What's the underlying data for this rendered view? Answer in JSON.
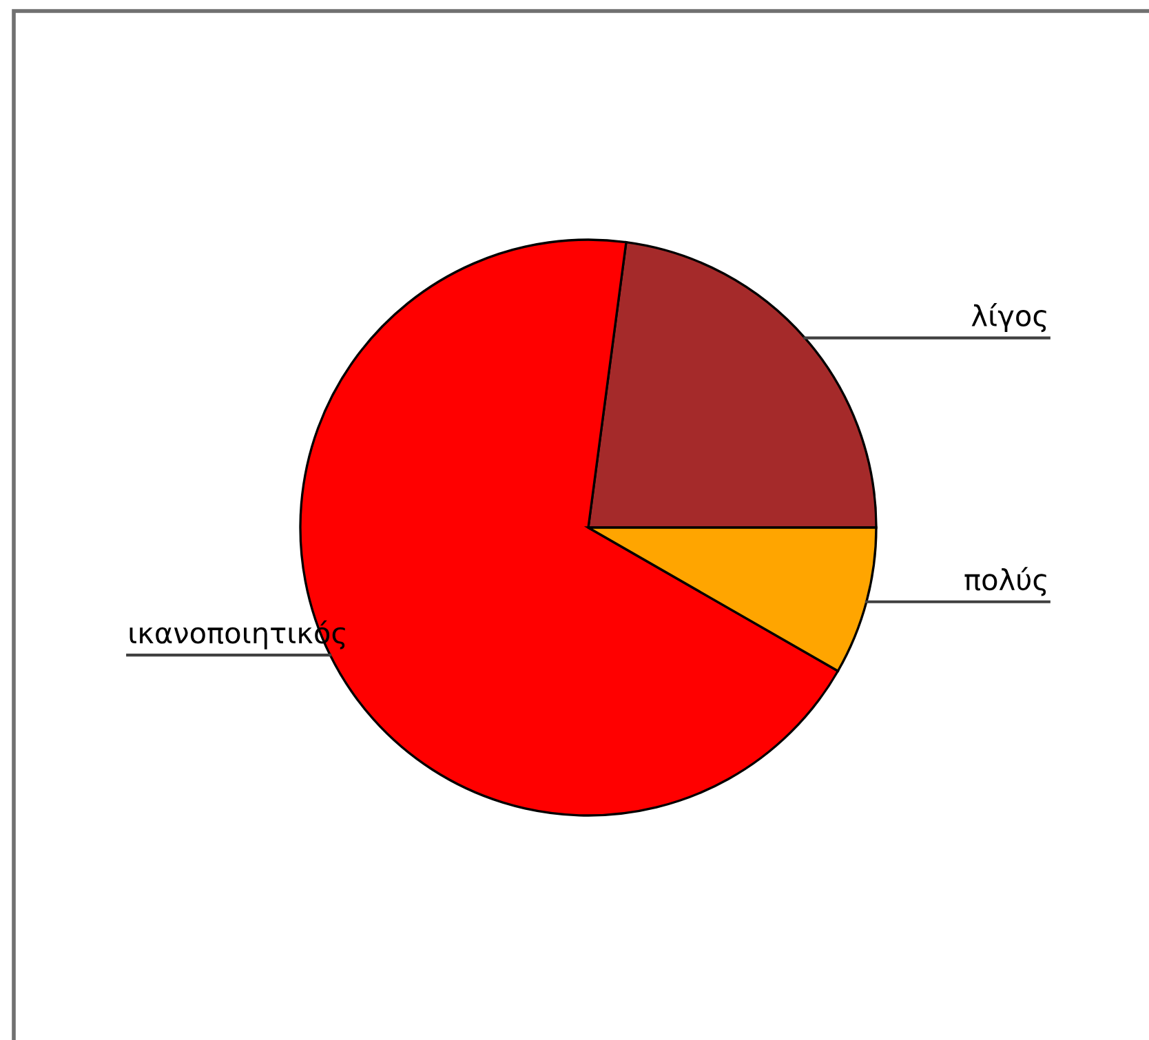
{
  "chart_data": {
    "type": "pie",
    "categories": [
      "λίγος",
      "ικανοποιητικός",
      "πολύς"
    ],
    "values": [
      22.9,
      68.8,
      8.3
    ],
    "colors": [
      "#a52a2a",
      "#ff0000",
      "#ffa500"
    ]
  }
}
